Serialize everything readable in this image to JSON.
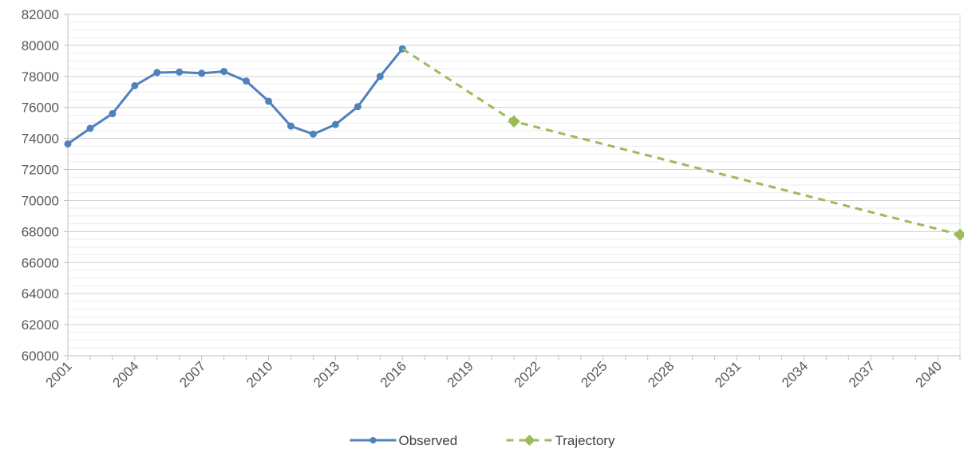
{
  "chart_data": {
    "type": "line",
    "title": "",
    "xlabel": "",
    "ylabel": "",
    "xlim": [
      2001,
      2041
    ],
    "ylim": [
      60000,
      82000
    ],
    "y_major_step": 2000,
    "y_minor_step": 500,
    "x_tick_step": 3,
    "x_ticks": [
      "2001",
      "2004",
      "2007",
      "2010",
      "2013",
      "2016",
      "2019",
      "2022",
      "2025",
      "2028",
      "2031",
      "2034",
      "2037",
      "2040"
    ],
    "y_ticks": [
      "60000",
      "62000",
      "64000",
      "66000",
      "68000",
      "70000",
      "72000",
      "74000",
      "76000",
      "78000",
      "80000",
      "82000"
    ],
    "grid": true,
    "legend_position": "bottom",
    "series": [
      {
        "name": "Observed",
        "color": "#4F81BD",
        "style": "solid",
        "marker": "circle",
        "x": [
          2001,
          2002,
          2003,
          2004,
          2005,
          2006,
          2007,
          2008,
          2009,
          2010,
          2011,
          2012,
          2013,
          2014,
          2015,
          2016
        ],
        "y": [
          73650,
          74650,
          75600,
          77400,
          78250,
          78280,
          78200,
          78320,
          77700,
          76400,
          74800,
          74280,
          74900,
          76050,
          78000,
          79780
        ]
      },
      {
        "name": "Trajectory",
        "color": "#9BBB59",
        "style": "dashed",
        "marker": "diamond",
        "x": [
          2016,
          2021,
          2041
        ],
        "y": [
          79780,
          75100,
          67800
        ],
        "marker_x": [
          2021,
          2041
        ]
      }
    ]
  }
}
